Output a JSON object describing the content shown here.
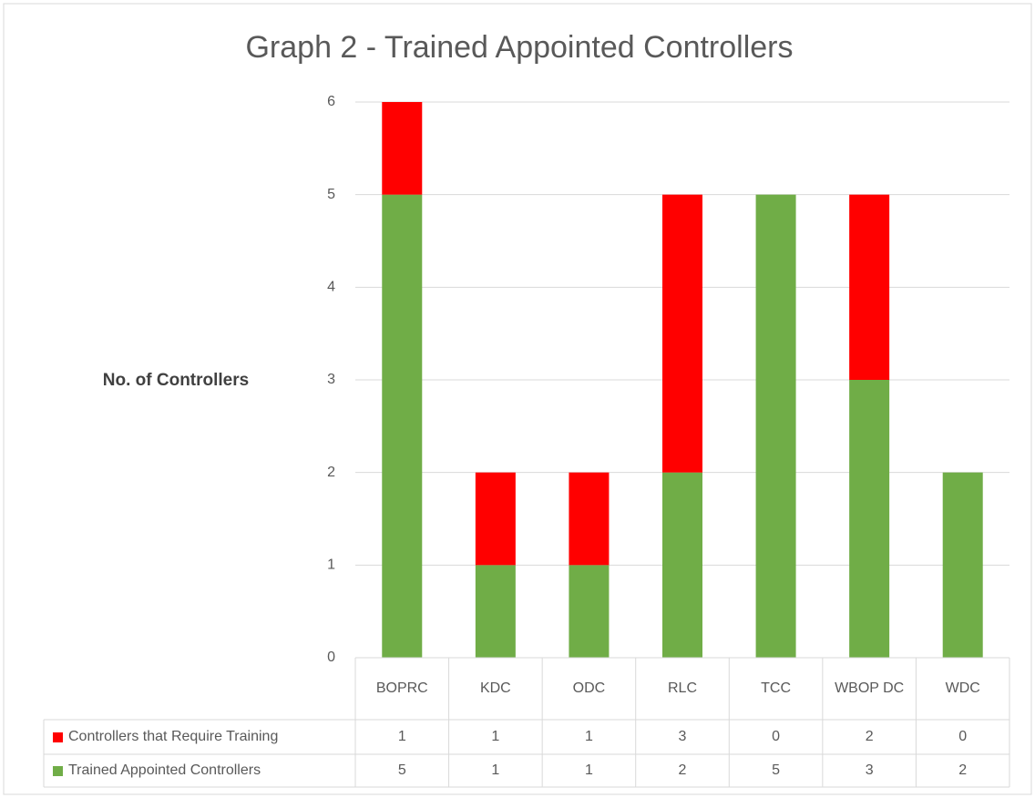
{
  "chart_data": {
    "type": "stacked_bar",
    "title": "Graph 2 - Trained Appointed Controllers",
    "y_label": "No. of Controllers",
    "categories": [
      "BOPRC",
      "KDC",
      "ODC",
      "RLC",
      "TCC",
      "WBOP DC",
      "WDC"
    ],
    "series": [
      {
        "name": "Controllers that Require Training",
        "color": "#ff0000",
        "values": [
          1,
          1,
          1,
          3,
          0,
          2,
          0
        ]
      },
      {
        "name": "Trained Appointed Controllers",
        "color": "#70ad47",
        "values": [
          5,
          1,
          1,
          2,
          5,
          3,
          2
        ]
      }
    ],
    "stack_order": [
      1,
      0
    ],
    "ylim": [
      0,
      6
    ],
    "yticks": [
      0,
      1,
      2,
      3,
      4,
      5,
      6
    ],
    "grid": true,
    "data_table": true
  }
}
